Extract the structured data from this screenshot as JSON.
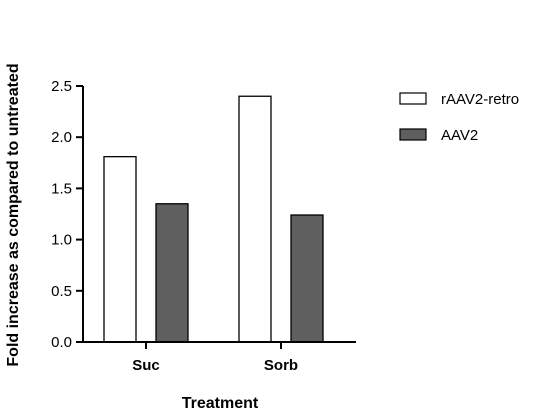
{
  "chart_data": {
    "type": "bar",
    "categories": [
      "Suc",
      "Sorb"
    ],
    "series": [
      {
        "name": "rAAV2-retro",
        "values": [
          1.81,
          2.4
        ],
        "color": "#ffffff",
        "stroke": "#000000"
      },
      {
        "name": "AAV2",
        "values": [
          1.35,
          1.24
        ],
        "color": "#5f5f5f",
        "stroke": "#000000"
      }
    ],
    "ylabel": "Fold increase as compared to untreated",
    "xlabel": "Treatment",
    "ylim": [
      0,
      2.5
    ],
    "yticks": [
      "0.0",
      "0.5",
      "1.0",
      "1.5",
      "2.0",
      "2.5"
    ],
    "legend_position": "right",
    "grid": false
  }
}
